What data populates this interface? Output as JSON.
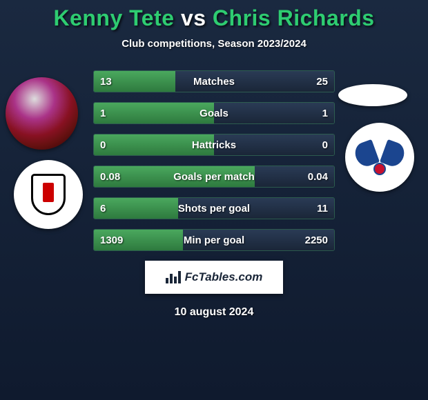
{
  "title": {
    "player1": "Kenny Tete",
    "vs": "vs",
    "player2": "Chris Richards",
    "player1_color": "#2ecc71",
    "vs_color": "#ffffff",
    "player2_color": "#2ecc71"
  },
  "subtitle": "Club competitions, Season 2023/2024",
  "player1_club": "Fulham",
  "player2_club": "Crystal Palace",
  "rows": [
    {
      "label": "Matches",
      "left": "13",
      "right": "25",
      "left_pct": 34
    },
    {
      "label": "Goals",
      "left": "1",
      "right": "1",
      "left_pct": 50
    },
    {
      "label": "Hattricks",
      "left": "0",
      "right": "0",
      "left_pct": 50
    },
    {
      "label": "Goals per match",
      "left": "0.08",
      "right": "0.04",
      "left_pct": 67
    },
    {
      "label": "Shots per goal",
      "left": "6",
      "right": "11",
      "left_pct": 35
    },
    {
      "label": "Min per goal",
      "left": "1309",
      "right": "2250",
      "left_pct": 37
    }
  ],
  "colors": {
    "bar_left": "#3d9954",
    "bar_right": "#223450",
    "background_top": "#1a2940",
    "background_bottom": "#0f1a2e",
    "text": "#ffffff"
  },
  "attribution": "FcTables.com",
  "date": "10 august 2024"
}
